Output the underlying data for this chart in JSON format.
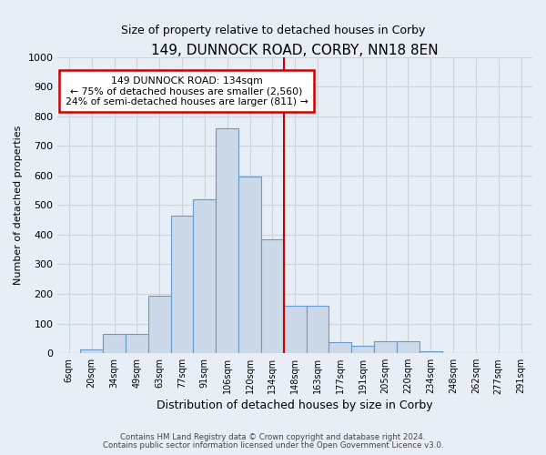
{
  "title": "149, DUNNOCK ROAD, CORBY, NN18 8EN",
  "subtitle": "Size of property relative to detached houses in Corby",
  "xlabel": "Distribution of detached houses by size in Corby",
  "ylabel": "Number of detached properties",
  "bar_color": "#ccd9e8",
  "bar_edge_color": "#6699cc",
  "background_color": "#e8eef5",
  "grid_color": "#c8d4e0",
  "bin_labels": [
    "6sqm",
    "20sqm",
    "34sqm",
    "49sqm",
    "63sqm",
    "77sqm",
    "91sqm",
    "106sqm",
    "120sqm",
    "134sqm",
    "148sqm",
    "163sqm",
    "177sqm",
    "191sqm",
    "205sqm",
    "220sqm",
    "234sqm",
    "248sqm",
    "262sqm",
    "277sqm",
    "291sqm"
  ],
  "bar_heights": [
    0,
    12,
    65,
    65,
    195,
    465,
    520,
    760,
    595,
    385,
    160,
    160,
    38,
    25,
    42,
    42,
    8,
    0,
    0,
    0,
    0
  ],
  "vline_x": 9.5,
  "vline_color": "#cc0000",
  "ylim": [
    0,
    1000
  ],
  "yticks": [
    0,
    100,
    200,
    300,
    400,
    500,
    600,
    700,
    800,
    900,
    1000
  ],
  "annotation_title": "149 DUNNOCK ROAD: 134sqm",
  "annotation_line1": "← 75% of detached houses are smaller (2,560)",
  "annotation_line2": "24% of semi-detached houses are larger (811) →",
  "annotation_box_color": "#ffffff",
  "annotation_box_edge": "#cc0000",
  "footer1": "Contains HM Land Registry data © Crown copyright and database right 2024.",
  "footer2": "Contains public sector information licensed under the Open Government Licence v3.0."
}
